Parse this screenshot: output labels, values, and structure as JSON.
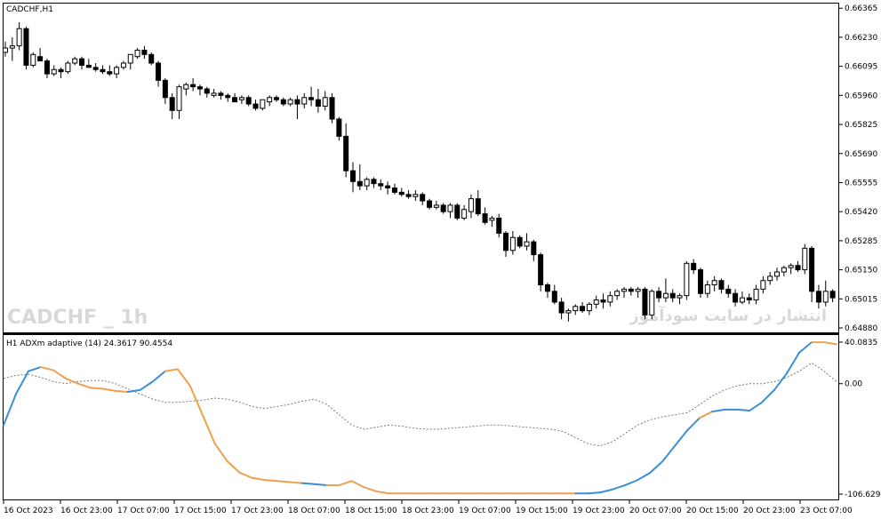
{
  "main_label": "CADCHF,H1",
  "indicator_label": "H1 ADXm adaptive (14) 24.3617 90.4554",
  "watermark_left": "CADCHF _ 1h",
  "watermark_right": "انتشار در سایت سودآموز",
  "colors": {
    "bull": "#ffffff",
    "bear": "#000000",
    "up": "#3a8fd9",
    "down": "#f0a050",
    "signal": "#7a7a7a"
  },
  "chart_data": {
    "type": "candlestick",
    "price_axis": {
      "min": 0.6488,
      "max": 0.6637,
      "ticks": [
        "0.66365",
        "0.66230",
        "0.66095",
        "0.65960",
        "0.65825",
        "0.65690",
        "0.65555",
        "0.65420",
        "0.65285",
        "0.65150",
        "0.65015",
        "0.64880"
      ]
    },
    "indicator_axis": {
      "min": -106.6294,
      "max": 40.0835,
      "ticks": [
        "40.0835",
        "0.00",
        "-106.6294"
      ]
    },
    "time_labels": [
      "16 Oct 2023",
      "16 Oct 23:00",
      "17 Oct 07:00",
      "17 Oct 15:00",
      "17 Oct 23:00",
      "18 Oct 07:00",
      "18 Oct 15:00",
      "18 Oct 23:00",
      "19 Oct 07:00",
      "19 Oct 15:00",
      "19 Oct 23:00",
      "20 Oct 07:00",
      "20 Oct 15:00",
      "20 Oct 23:00",
      "23 Oct 07:00"
    ],
    "candles": [
      [
        0.6616,
        0.6621,
        0.6614,
        0.6618
      ],
      [
        0.6618,
        0.6623,
        0.6612,
        0.6619
      ],
      [
        0.6619,
        0.663,
        0.6617,
        0.6627
      ],
      [
        0.6627,
        0.6628,
        0.6608,
        0.661
      ],
      [
        0.661,
        0.6616,
        0.6609,
        0.6615
      ],
      [
        0.6614,
        0.6618,
        0.6612,
        0.6612
      ],
      [
        0.6612,
        0.6613,
        0.6604,
        0.6606
      ],
      [
        0.6606,
        0.661,
        0.6605,
        0.6608
      ],
      [
        0.6608,
        0.6609,
        0.6604,
        0.6607
      ],
      [
        0.6607,
        0.6612,
        0.6606,
        0.6611
      ],
      [
        0.6611,
        0.6614,
        0.661,
        0.6613
      ],
      [
        0.6613,
        0.6614,
        0.6608,
        0.661
      ],
      [
        0.661,
        0.6613,
        0.6609,
        0.6609
      ],
      [
        0.6609,
        0.6611,
        0.6607,
        0.6608
      ],
      [
        0.6608,
        0.661,
        0.6606,
        0.6607
      ],
      [
        0.6607,
        0.661,
        0.6605,
        0.6606
      ],
      [
        0.6606,
        0.661,
        0.6604,
        0.6609
      ],
      [
        0.6609,
        0.6612,
        0.6608,
        0.6611
      ],
      [
        0.6611,
        0.6614,
        0.6608,
        0.6615
      ],
      [
        0.6614,
        0.6618,
        0.6613,
        0.6617
      ],
      [
        0.6617,
        0.6619,
        0.6613,
        0.6615
      ],
      [
        0.6615,
        0.6616,
        0.661,
        0.6611
      ],
      [
        0.6611,
        0.6612,
        0.66,
        0.6603
      ],
      [
        0.6603,
        0.6604,
        0.6592,
        0.6595
      ],
      [
        0.6595,
        0.6597,
        0.6585,
        0.6589
      ],
      [
        0.6589,
        0.6601,
        0.6585,
        0.66
      ],
      [
        0.6599,
        0.6602,
        0.6596,
        0.6601
      ],
      [
        0.6601,
        0.6604,
        0.6598,
        0.66
      ],
      [
        0.66,
        0.6601,
        0.6596,
        0.6599
      ],
      [
        0.6599,
        0.66,
        0.6595,
        0.6597
      ],
      [
        0.6596,
        0.6599,
        0.6595,
        0.6597
      ],
      [
        0.6597,
        0.6598,
        0.6594,
        0.6596
      ],
      [
        0.6596,
        0.6597,
        0.6593,
        0.6595
      ],
      [
        0.6595,
        0.6597,
        0.6593,
        0.6593
      ],
      [
        0.6594,
        0.6596,
        0.6592,
        0.6595
      ],
      [
        0.6595,
        0.6596,
        0.6591,
        0.6592
      ],
      [
        0.6592,
        0.6594,
        0.6589,
        0.659
      ],
      [
        0.659,
        0.6594,
        0.6589,
        0.6594
      ],
      [
        0.6593,
        0.6596,
        0.6591,
        0.6595
      ],
      [
        0.6595,
        0.6596,
        0.6593,
        0.6594
      ],
      [
        0.6594,
        0.6595,
        0.6591,
        0.6592
      ],
      [
        0.6592,
        0.6595,
        0.6591,
        0.6594
      ],
      [
        0.6594,
        0.6596,
        0.6585,
        0.6592
      ],
      [
        0.6592,
        0.6597,
        0.659,
        0.6595
      ],
      [
        0.6595,
        0.66,
        0.6591,
        0.6594
      ],
      [
        0.6594,
        0.6599,
        0.6588,
        0.6591
      ],
      [
        0.6591,
        0.6598,
        0.6589,
        0.6595
      ],
      [
        0.6595,
        0.6597,
        0.6583,
        0.6585
      ],
      [
        0.6585,
        0.6586,
        0.6575,
        0.6577
      ],
      [
        0.6577,
        0.6583,
        0.6558,
        0.6561
      ],
      [
        0.6561,
        0.6565,
        0.6551,
        0.6556
      ],
      [
        0.6556,
        0.6564,
        0.6552,
        0.6554
      ],
      [
        0.6554,
        0.6558,
        0.6552,
        0.6557
      ],
      [
        0.6557,
        0.6558,
        0.6553,
        0.6555
      ],
      [
        0.6555,
        0.6557,
        0.6552,
        0.6554
      ],
      [
        0.6554,
        0.6556,
        0.655,
        0.6553
      ],
      [
        0.6553,
        0.6555,
        0.655,
        0.6551
      ],
      [
        0.6551,
        0.6553,
        0.6549,
        0.655
      ],
      [
        0.655,
        0.6552,
        0.6548,
        0.6549
      ],
      [
        0.6549,
        0.6552,
        0.6547,
        0.655
      ],
      [
        0.655,
        0.6551,
        0.6545,
        0.6547
      ],
      [
        0.6547,
        0.6548,
        0.6543,
        0.6544
      ],
      [
        0.6544,
        0.6547,
        0.6543,
        0.6545
      ],
      [
        0.6545,
        0.6546,
        0.6541,
        0.6542
      ],
      [
        0.6542,
        0.6546,
        0.6539,
        0.6545
      ],
      [
        0.6545,
        0.6546,
        0.6538,
        0.6539
      ],
      [
        0.6539,
        0.6545,
        0.6538,
        0.6543
      ],
      [
        0.6542,
        0.655,
        0.6539,
        0.6548
      ],
      [
        0.6548,
        0.6552,
        0.654,
        0.6541
      ],
      [
        0.6541,
        0.6544,
        0.6536,
        0.6537
      ],
      [
        0.6538,
        0.654,
        0.6535,
        0.6539
      ],
      [
        0.6539,
        0.6541,
        0.653,
        0.6532
      ],
      [
        0.6532,
        0.6533,
        0.6521,
        0.6524
      ],
      [
        0.6524,
        0.6533,
        0.6522,
        0.653
      ],
      [
        0.653,
        0.6531,
        0.6525,
        0.6526
      ],
      [
        0.6526,
        0.6532,
        0.6524,
        0.6528
      ],
      [
        0.6528,
        0.6529,
        0.6519,
        0.6522
      ],
      [
        0.6522,
        0.6523,
        0.6505,
        0.6508
      ],
      [
        0.6508,
        0.6509,
        0.6502,
        0.6505
      ],
      [
        0.6505,
        0.6508,
        0.6499,
        0.65
      ],
      [
        0.65,
        0.6502,
        0.6492,
        0.6495
      ],
      [
        0.6495,
        0.6497,
        0.6491,
        0.6496
      ],
      [
        0.6496,
        0.6499,
        0.6494,
        0.6498
      ],
      [
        0.6498,
        0.65,
        0.6495,
        0.6496
      ],
      [
        0.6496,
        0.65,
        0.6494,
        0.6499
      ],
      [
        0.6499,
        0.6503,
        0.6497,
        0.6501
      ],
      [
        0.6501,
        0.6504,
        0.6497,
        0.65
      ],
      [
        0.65,
        0.6505,
        0.6498,
        0.6503
      ],
      [
        0.6503,
        0.6506,
        0.6501,
        0.6505
      ],
      [
        0.6505,
        0.6507,
        0.6502,
        0.6506
      ],
      [
        0.6506,
        0.6507,
        0.6503,
        0.6505
      ],
      [
        0.6505,
        0.6507,
        0.6502,
        0.6506
      ],
      [
        0.6506,
        0.6507,
        0.6492,
        0.6494
      ],
      [
        0.6494,
        0.6506,
        0.6492,
        0.6505
      ],
      [
        0.6505,
        0.6507,
        0.65,
        0.6502
      ],
      [
        0.6502,
        0.6511,
        0.65,
        0.6504
      ],
      [
        0.6504,
        0.6506,
        0.65,
        0.6502
      ],
      [
        0.6502,
        0.6504,
        0.6499,
        0.6503
      ],
      [
        0.6503,
        0.6519,
        0.6501,
        0.6518
      ],
      [
        0.6518,
        0.652,
        0.6513,
        0.6515
      ],
      [
        0.6515,
        0.6516,
        0.6502,
        0.6504
      ],
      [
        0.6504,
        0.651,
        0.6502,
        0.6508
      ],
      [
        0.6508,
        0.6512,
        0.6505,
        0.651
      ],
      [
        0.651,
        0.6511,
        0.6504,
        0.6506
      ],
      [
        0.6506,
        0.6508,
        0.6502,
        0.6504
      ],
      [
        0.6504,
        0.6506,
        0.6498,
        0.65
      ],
      [
        0.65,
        0.6505,
        0.6499,
        0.6502
      ],
      [
        0.6502,
        0.6504,
        0.6499,
        0.6501
      ],
      [
        0.6501,
        0.6508,
        0.6499,
        0.6506
      ],
      [
        0.6506,
        0.6512,
        0.6504,
        0.651
      ],
      [
        0.651,
        0.6514,
        0.6508,
        0.6512
      ],
      [
        0.6512,
        0.6516,
        0.651,
        0.6514
      ],
      [
        0.6514,
        0.6517,
        0.6512,
        0.6516
      ],
      [
        0.6516,
        0.6518,
        0.6513,
        0.6517
      ],
      [
        0.6517,
        0.6519,
        0.6514,
        0.6515
      ],
      [
        0.6515,
        0.6527,
        0.6513,
        0.6525
      ],
      [
        0.6525,
        0.6526,
        0.65,
        0.6505
      ],
      [
        0.6505,
        0.6508,
        0.6497,
        0.65
      ],
      [
        0.65,
        0.651,
        0.6498,
        0.6505
      ],
      [
        0.6505,
        0.6506,
        0.65,
        0.6502
      ]
    ],
    "indicator": {
      "main": [
        -40,
        -10,
        12,
        16,
        13,
        5,
        0,
        -4,
        -5,
        -7,
        -8,
        -6,
        2,
        12,
        14,
        -2,
        -30,
        -58,
        -75,
        -86,
        -91,
        -93,
        -94,
        -95,
        -96,
        -97,
        -98,
        -98,
        -94,
        -100,
        -104,
        -106,
        -106,
        -106,
        -106,
        -106,
        -106,
        -106,
        -106,
        -106,
        -106,
        -106,
        -106,
        -106,
        -106,
        -106,
        -106,
        -106,
        -105,
        -102,
        -98,
        -93,
        -86,
        -75,
        -60,
        -45,
        -33,
        -27,
        -25,
        -25,
        -26,
        -18,
        -6,
        10,
        30,
        40,
        40,
        38
      ],
      "signal": [
        5,
        8,
        9,
        6,
        2,
        0,
        2,
        3,
        3,
        0,
        -5,
        -10,
        -15,
        -18,
        -18,
        -17,
        -16,
        -14,
        -15,
        -18,
        -22,
        -24,
        -22,
        -20,
        -17,
        -15,
        -20,
        -30,
        -40,
        -44,
        -42,
        -40,
        -41,
        -43,
        -44,
        -44,
        -43,
        -42,
        -41,
        -40,
        -40,
        -41,
        -42,
        -43,
        -44,
        -46,
        -52,
        -58,
        -60,
        -56,
        -48,
        -40,
        -35,
        -32,
        -30,
        -28,
        -20,
        -12,
        -6,
        -2,
        0,
        0,
        2,
        6,
        12,
        20,
        12,
        2
      ],
      "direction": [
        "u",
        "u",
        "u",
        "u",
        "d",
        "d",
        "d",
        "d",
        "d",
        "d",
        "d",
        "u",
        "u",
        "u",
        "d",
        "d",
        "d",
        "d",
        "d",
        "d",
        "d",
        "d",
        "d",
        "d",
        "d",
        "u",
        "u",
        "d",
        "d",
        "d",
        "d",
        "d",
        "d",
        "d",
        "d",
        "d",
        "d",
        "d",
        "d",
        "d",
        "d",
        "d",
        "d",
        "d",
        "d",
        "d",
        "d",
        "u",
        "u",
        "u",
        "u",
        "u",
        "u",
        "u",
        "u",
        "u",
        "u",
        "d",
        "u",
        "u",
        "u",
        "u",
        "u",
        "u",
        "u",
        "u",
        "d",
        "d"
      ]
    }
  }
}
